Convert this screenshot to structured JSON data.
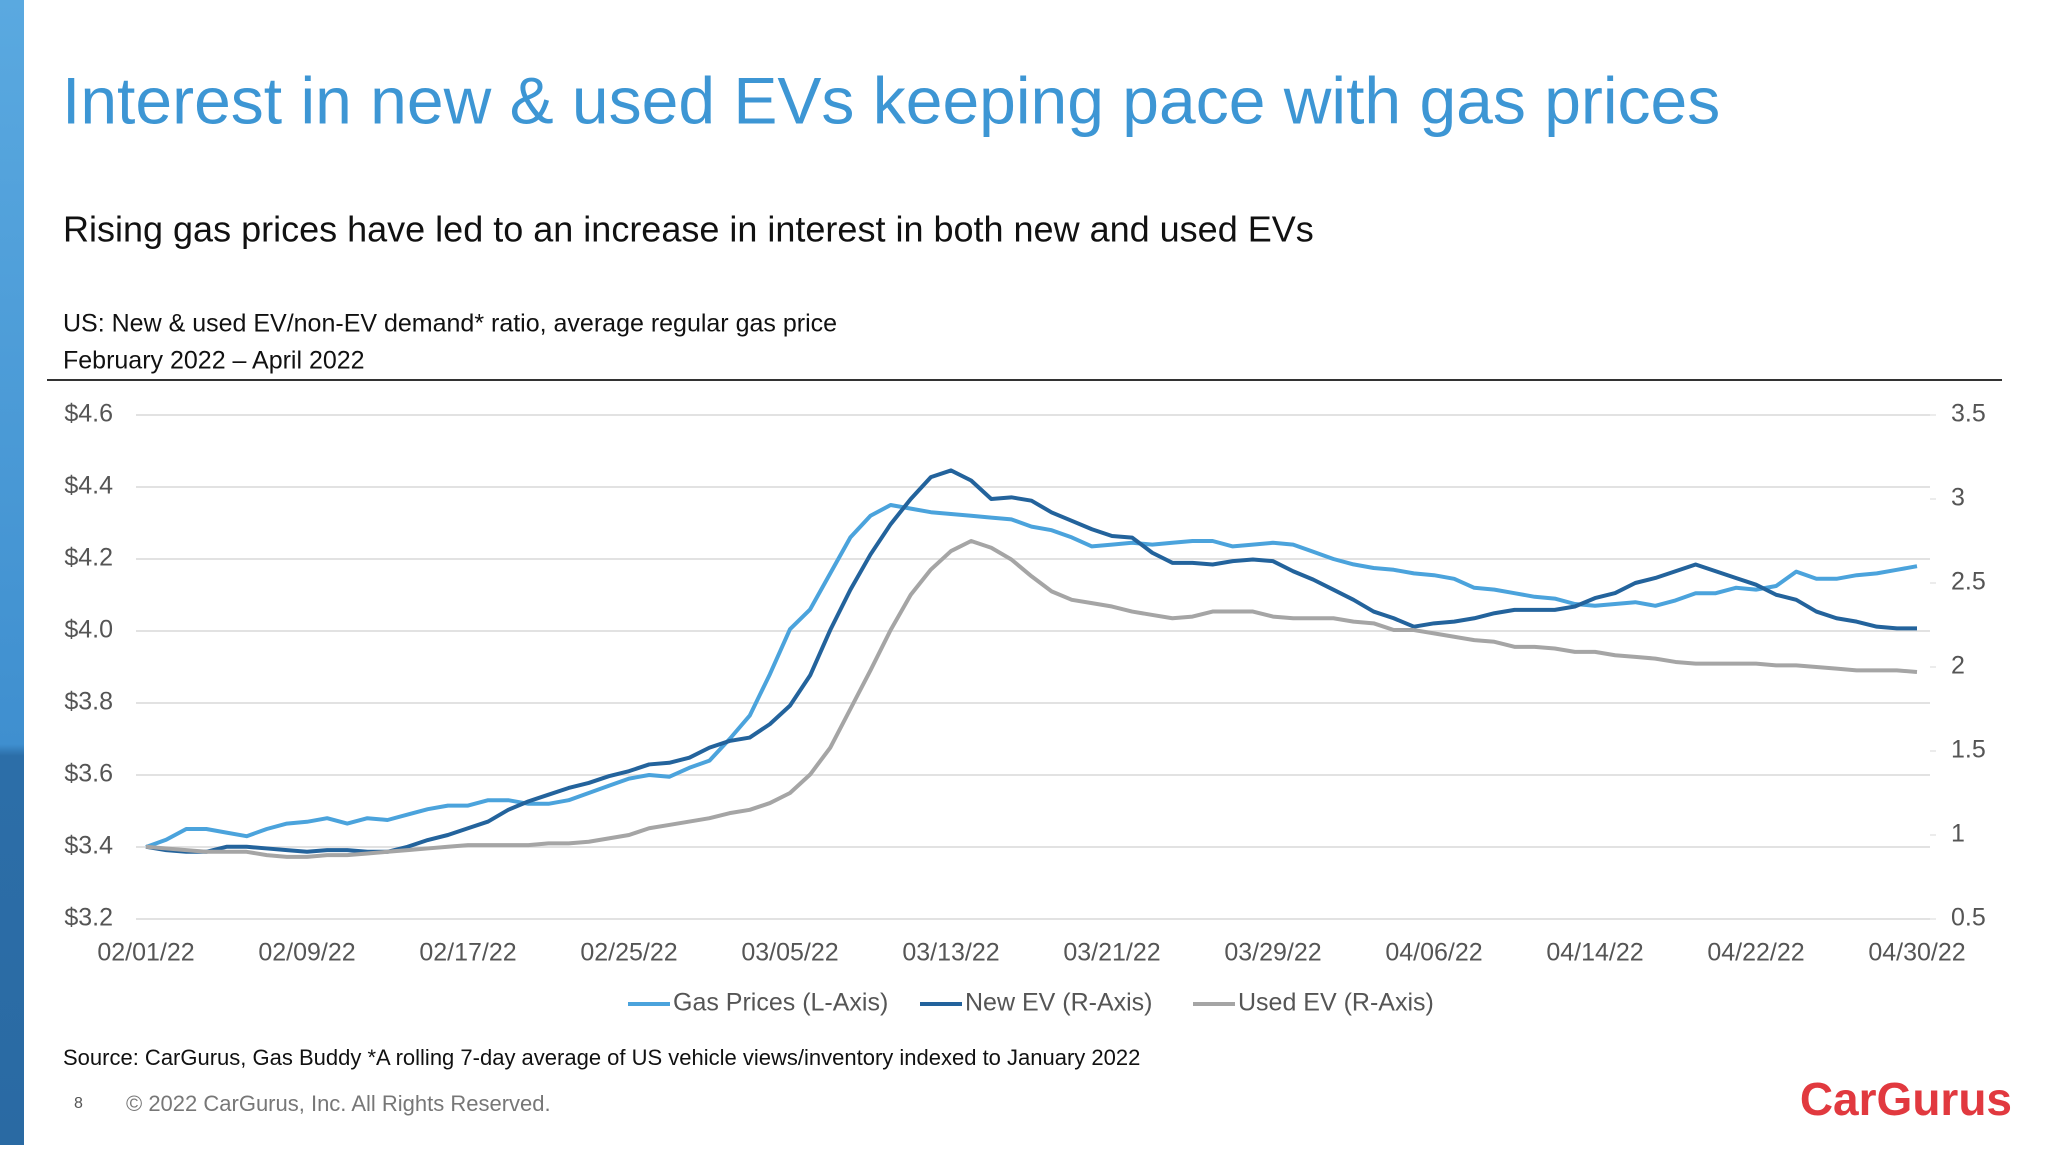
{
  "slide": {
    "title": "Interest in new & used EVs keeping pace with gas prices",
    "subtitle": "Rising gas prices have led to an increase in interest in both new and used EVs",
    "source": "Source: CarGurus, Gas Buddy *A rolling 7-day average of US vehicle views/inventory indexed to January 2022",
    "page_number": "8",
    "copyright": "© 2022 CarGurus, Inc.  All Rights Reserved.",
    "logo": "CarGurus"
  },
  "chart_data": {
    "type": "line",
    "title": "US: New & used EV/non-EV demand* ratio, average regular gas price",
    "subtitle": "February 2022 – April 2022",
    "categories": [
      "02/01/22",
      null,
      null,
      null,
      null,
      null,
      null,
      null,
      "02/09/22",
      null,
      null,
      null,
      null,
      null,
      null,
      null,
      "02/17/22",
      null,
      null,
      null,
      null,
      null,
      null,
      null,
      "02/25/22",
      null,
      null,
      null,
      null,
      null,
      null,
      null,
      "03/05/22",
      null,
      null,
      null,
      null,
      null,
      null,
      null,
      "03/13/22",
      null,
      null,
      null,
      null,
      null,
      null,
      null,
      "03/21/22",
      null,
      null,
      null,
      null,
      null,
      null,
      null,
      "03/29/22",
      null,
      null,
      null,
      null,
      null,
      null,
      null,
      "04/06/22",
      null,
      null,
      null,
      null,
      null,
      null,
      null,
      "04/14/22",
      null,
      null,
      null,
      null,
      null,
      null,
      null,
      "04/22/22",
      null,
      null,
      null,
      null,
      null,
      null,
      null,
      "04/30/22"
    ],
    "series": [
      {
        "name": "Gas Prices (L-Axis)",
        "color": "#4ba3dc",
        "axis": "y",
        "values": [
          3.4,
          3.42,
          3.45,
          3.45,
          3.44,
          3.43,
          3.45,
          3.465,
          3.47,
          3.48,
          3.465,
          3.48,
          3.475,
          3.49,
          3.505,
          3.515,
          3.515,
          3.53,
          3.53,
          3.52,
          3.52,
          3.53,
          3.55,
          3.57,
          3.59,
          3.6,
          3.595,
          3.62,
          3.64,
          3.7,
          3.765,
          3.88,
          4.005,
          4.06,
          4.16,
          4.26,
          4.32,
          4.35,
          4.34,
          4.33,
          4.325,
          4.32,
          4.315,
          4.31,
          4.29,
          4.28,
          4.26,
          4.235,
          4.24,
          4.245,
          4.24,
          4.245,
          4.25,
          4.25,
          4.235,
          4.24,
          4.245,
          4.24,
          4.22,
          4.2,
          4.185,
          4.175,
          4.17,
          4.16,
          4.155,
          4.145,
          4.12,
          4.115,
          4.105,
          4.095,
          4.09,
          4.075,
          4.07,
          4.075,
          4.08,
          4.07,
          4.085,
          4.105,
          4.105,
          4.12,
          4.115,
          4.125,
          4.165,
          4.145,
          4.145,
          4.155,
          4.16,
          4.17,
          4.18
        ]
      },
      {
        "name": "New EV (R-Axis)",
        "color": "#23639c",
        "axis": "y2",
        "values": [
          0.93,
          0.91,
          0.9,
          0.9,
          0.93,
          0.93,
          0.92,
          0.91,
          0.9,
          0.91,
          0.91,
          0.9,
          0.9,
          0.93,
          0.97,
          1.0,
          1.04,
          1.08,
          1.15,
          1.2,
          1.24,
          1.28,
          1.31,
          1.35,
          1.38,
          1.42,
          1.43,
          1.46,
          1.52,
          1.56,
          1.58,
          1.66,
          1.77,
          1.95,
          2.22,
          2.46,
          2.67,
          2.85,
          3.0,
          3.13,
          3.17,
          3.11,
          3.0,
          3.01,
          2.99,
          2.92,
          2.87,
          2.82,
          2.78,
          2.77,
          2.68,
          2.62,
          2.62,
          2.61,
          2.63,
          2.64,
          2.63,
          2.57,
          2.52,
          2.46,
          2.4,
          2.33,
          2.29,
          2.24,
          2.26,
          2.27,
          2.29,
          2.32,
          2.34,
          2.34,
          2.34,
          2.36,
          2.41,
          2.44,
          2.5,
          2.53,
          2.57,
          2.61,
          2.57,
          2.53,
          2.49,
          2.43,
          2.4,
          2.33,
          2.29,
          2.27,
          2.24,
          2.23,
          2.23
        ]
      },
      {
        "name": "Used EV (R-Axis)",
        "color": "#a5a5a5",
        "axis": "y2",
        "values": [
          0.93,
          0.92,
          0.91,
          0.9,
          0.9,
          0.9,
          0.88,
          0.87,
          0.87,
          0.88,
          0.88,
          0.89,
          0.9,
          0.91,
          0.92,
          0.93,
          0.94,
          0.94,
          0.94,
          0.94,
          0.95,
          0.95,
          0.96,
          0.98,
          1.0,
          1.04,
          1.06,
          1.08,
          1.1,
          1.13,
          1.15,
          1.19,
          1.25,
          1.36,
          1.52,
          1.75,
          1.98,
          2.22,
          2.43,
          2.58,
          2.69,
          2.75,
          2.71,
          2.64,
          2.54,
          2.45,
          2.4,
          2.38,
          2.36,
          2.33,
          2.31,
          2.29,
          2.3,
          2.33,
          2.33,
          2.33,
          2.3,
          2.29,
          2.29,
          2.29,
          2.27,
          2.26,
          2.22,
          2.22,
          2.2,
          2.18,
          2.16,
          2.15,
          2.12,
          2.12,
          2.11,
          2.09,
          2.09,
          2.07,
          2.06,
          2.05,
          2.03,
          2.02,
          2.02,
          2.02,
          2.02,
          2.01,
          2.01,
          2.0,
          1.99,
          1.98,
          1.98,
          1.98,
          1.97
        ]
      }
    ],
    "ylim": [
      3.2,
      4.6
    ],
    "yticks": [
      {
        "value": 4.6,
        "label": "$4.6"
      },
      {
        "value": 4.4,
        "label": "$4.4"
      },
      {
        "value": 4.2,
        "label": "$4.2"
      },
      {
        "value": 4.0,
        "label": "$4.0"
      },
      {
        "value": 3.8,
        "label": "$3.8"
      },
      {
        "value": 3.6,
        "label": "$3.6"
      },
      {
        "value": 3.4,
        "label": "$3.4"
      },
      {
        "value": 3.2,
        "label": "$3.2"
      }
    ],
    "y2lim": [
      0.5,
      3.5
    ],
    "y2ticks": [
      3.5,
      3,
      2.5,
      2,
      1.5,
      1,
      0.5
    ],
    "grid": true,
    "legend": "bottom"
  }
}
